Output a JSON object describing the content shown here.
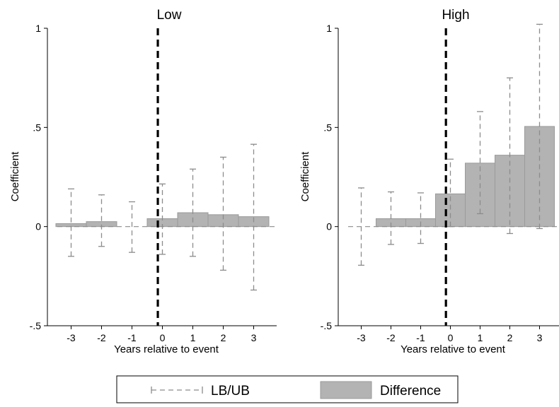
{
  "colors": {
    "bar_fill": "#b3b3b3",
    "bar_stroke": "#9a9a9a",
    "ci_line": "#8c8c8c",
    "event_line": "#000000",
    "zero_line": "#8c8c8c"
  },
  "legend": {
    "entries": [
      {
        "label": "LB/UB",
        "style": "dashed-capped-line"
      },
      {
        "label": "Difference",
        "style": "gray-bar"
      }
    ]
  },
  "chart_data": [
    {
      "type": "bar",
      "title": "Low",
      "xlabel": "Years relative to event",
      "ylabel": "Coefficient",
      "x": [
        -3,
        -2,
        -1,
        0,
        1,
        2,
        3
      ],
      "xticks": [
        "-3",
        "-2",
        "-1",
        "0",
        "1",
        "2",
        "3"
      ],
      "ylim": [
        -0.5,
        1
      ],
      "yticks": [
        {
          "v": -0.5,
          "label": "-.5"
        },
        {
          "v": 0,
          "label": "0"
        },
        {
          "v": 0.5,
          "label": ".5"
        },
        {
          "v": 1,
          "label": "1"
        }
      ],
      "event_line_x": -0.15,
      "series": [
        {
          "name": "Difference",
          "values": [
            0.015,
            0.025,
            0.0,
            0.04,
            0.07,
            0.06,
            0.05
          ]
        },
        {
          "name": "LB/UB",
          "lower": [
            -0.15,
            -0.1,
            -0.13,
            -0.14,
            -0.15,
            -0.22,
            -0.32
          ],
          "upper": [
            0.19,
            0.16,
            0.125,
            0.215,
            0.29,
            0.35,
            0.415
          ]
        }
      ]
    },
    {
      "type": "bar",
      "title": "High",
      "xlabel": "Years relative to event",
      "ylabel": "Coefficient",
      "x": [
        -3,
        -2,
        -1,
        0,
        1,
        2,
        3
      ],
      "xticks": [
        "-3",
        "-2",
        "-1",
        "0",
        "1",
        "2",
        "3"
      ],
      "ylim": [
        -0.5,
        1
      ],
      "yticks": [
        {
          "v": -0.5,
          "label": "-.5"
        },
        {
          "v": 0,
          "label": "0"
        },
        {
          "v": 0.5,
          "label": ".5"
        },
        {
          "v": 1,
          "label": "1"
        }
      ],
      "event_line_x": -0.15,
      "series": [
        {
          "name": "Difference",
          "values": [
            0.0,
            0.04,
            0.04,
            0.165,
            0.32,
            0.36,
            0.505
          ]
        },
        {
          "name": "LB/UB",
          "lower": [
            -0.195,
            -0.09,
            -0.085,
            0.0,
            0.065,
            -0.035,
            -0.01
          ],
          "upper": [
            0.195,
            0.175,
            0.17,
            0.34,
            0.58,
            0.75,
            1.02
          ]
        }
      ]
    }
  ]
}
